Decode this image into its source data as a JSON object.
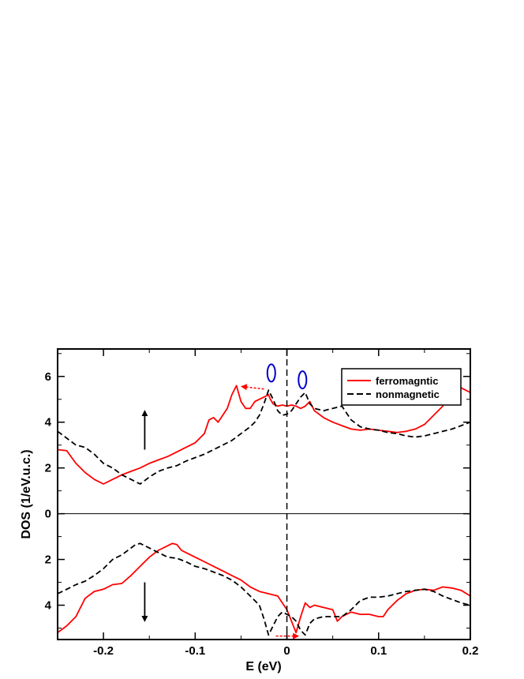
{
  "chart_data": {
    "type": "line",
    "xlabel": "E (eV)",
    "ylabel": "DOS (1/eV.u.c.)",
    "xlim": [
      -0.25,
      0.2
    ],
    "ylim": [
      -5.5,
      7.2
    ],
    "x_ticks": [
      -0.2,
      -0.1,
      0,
      0.1,
      0.2
    ],
    "x_tick_labels": [
      "-0.2",
      "-0.1",
      "0",
      "0.1",
      "0.2"
    ],
    "y_ticks": [
      6,
      4,
      2,
      0,
      -2,
      -4
    ],
    "y_tick_labels": [
      "6",
      "4",
      "2",
      "0",
      "2",
      "4"
    ],
    "legend_position": "top-right",
    "colors": {
      "ferromagnetic": "#ff0000",
      "nonmagnetic": "#000000",
      "markers": "#0000cc"
    },
    "spin_up_label": "↑",
    "spin_down_label": "↓",
    "series": [
      {
        "name": "ferromagntic",
        "style": "solid",
        "color": "#ff0000",
        "up": {
          "x": [
            -0.25,
            -0.24,
            -0.23,
            -0.22,
            -0.21,
            -0.2,
            -0.19,
            -0.18,
            -0.17,
            -0.16,
            -0.15,
            -0.14,
            -0.13,
            -0.12,
            -0.11,
            -0.1,
            -0.09,
            -0.085,
            -0.08,
            -0.075,
            -0.07,
            -0.065,
            -0.06,
            -0.055,
            -0.05,
            -0.045,
            -0.04,
            -0.035,
            -0.03,
            -0.025,
            -0.02,
            -0.018,
            -0.015,
            -0.01,
            -0.005,
            0,
            0.005,
            0.01,
            0.015,
            0.02,
            0.025,
            0.03,
            0.04,
            0.05,
            0.06,
            0.07,
            0.08,
            0.09,
            0.1,
            0.11,
            0.12,
            0.13,
            0.14,
            0.15,
            0.16,
            0.17,
            0.175,
            0.18,
            0.185,
            0.19,
            0.2
          ],
          "y": [
            2.8,
            2.75,
            2.2,
            1.8,
            1.5,
            1.3,
            1.5,
            1.7,
            1.85,
            2.0,
            2.2,
            2.35,
            2.5,
            2.7,
            2.9,
            3.1,
            3.5,
            4.1,
            4.2,
            4.0,
            4.3,
            4.6,
            5.2,
            5.6,
            4.9,
            4.6,
            4.6,
            4.9,
            5.0,
            5.1,
            5.2,
            5.0,
            4.8,
            4.7,
            4.75,
            4.7,
            4.75,
            4.7,
            4.6,
            4.7,
            4.9,
            4.5,
            4.2,
            4.0,
            3.85,
            3.7,
            3.65,
            3.7,
            3.65,
            3.6,
            3.55,
            3.6,
            3.7,
            3.9,
            4.3,
            4.7,
            5.1,
            6.2,
            5.8,
            5.5,
            5.3
          ]
        },
        "down": {
          "x": [
            -0.25,
            -0.24,
            -0.23,
            -0.22,
            -0.21,
            -0.2,
            -0.19,
            -0.18,
            -0.17,
            -0.16,
            -0.15,
            -0.14,
            -0.13,
            -0.125,
            -0.12,
            -0.115,
            -0.11,
            -0.1,
            -0.09,
            -0.08,
            -0.07,
            -0.06,
            -0.05,
            -0.04,
            -0.03,
            -0.02,
            -0.01,
            0,
            0.005,
            0.01,
            0.015,
            0.02,
            0.025,
            0.03,
            0.04,
            0.05,
            0.055,
            0.06,
            0.07,
            0.08,
            0.09,
            0.1,
            0.105,
            0.11,
            0.12,
            0.13,
            0.14,
            0.15,
            0.16,
            0.17,
            0.18,
            0.19,
            0.2
          ],
          "y": [
            -5.2,
            -4.9,
            -4.5,
            -3.7,
            -3.4,
            -3.3,
            -3.1,
            -3.05,
            -2.7,
            -2.3,
            -1.9,
            -1.6,
            -1.4,
            -1.3,
            -1.35,
            -1.6,
            -1.7,
            -1.9,
            -2.1,
            -2.3,
            -2.5,
            -2.7,
            -2.9,
            -3.2,
            -3.4,
            -3.5,
            -3.6,
            -4.2,
            -4.7,
            -5.2,
            -4.5,
            -3.9,
            -4.1,
            -4.0,
            -4.1,
            -4.2,
            -4.7,
            -4.5,
            -4.3,
            -4.4,
            -4.4,
            -4.5,
            -4.5,
            -4.2,
            -3.8,
            -3.5,
            -3.35,
            -3.3,
            -3.35,
            -3.2,
            -3.25,
            -3.35,
            -3.6
          ]
        }
      },
      {
        "name": "nonmagnetic",
        "style": "dashed",
        "color": "#000000",
        "up": {
          "x": [
            -0.25,
            -0.24,
            -0.23,
            -0.22,
            -0.21,
            -0.2,
            -0.19,
            -0.18,
            -0.17,
            -0.16,
            -0.15,
            -0.14,
            -0.13,
            -0.12,
            -0.11,
            -0.1,
            -0.09,
            -0.08,
            -0.07,
            -0.06,
            -0.05,
            -0.04,
            -0.035,
            -0.03,
            -0.025,
            -0.02,
            -0.015,
            -0.01,
            -0.005,
            0,
            0.005,
            0.01,
            0.015,
            0.02,
            0.025,
            0.03,
            0.04,
            0.05,
            0.06,
            0.07,
            0.08,
            0.09,
            0.1,
            0.11,
            0.12,
            0.13,
            0.14,
            0.15,
            0.16,
            0.17,
            0.18,
            0.19,
            0.2
          ],
          "y": [
            3.6,
            3.3,
            3.0,
            2.9,
            2.6,
            2.2,
            2.0,
            1.7,
            1.5,
            1.3,
            1.6,
            1.85,
            2.0,
            2.1,
            2.3,
            2.45,
            2.6,
            2.8,
            3.0,
            3.2,
            3.5,
            3.8,
            4.0,
            4.3,
            4.8,
            5.4,
            5.0,
            4.5,
            4.3,
            4.35,
            4.5,
            4.8,
            5.1,
            5.3,
            4.8,
            4.6,
            4.5,
            4.6,
            4.7,
            4.1,
            3.8,
            3.7,
            3.65,
            3.55,
            3.5,
            3.4,
            3.35,
            3.4,
            3.5,
            3.6,
            3.7,
            3.85,
            4.0
          ]
        },
        "down": {
          "x": [
            -0.25,
            -0.24,
            -0.23,
            -0.22,
            -0.21,
            -0.2,
            -0.19,
            -0.18,
            -0.17,
            -0.165,
            -0.16,
            -0.155,
            -0.15,
            -0.14,
            -0.13,
            -0.12,
            -0.11,
            -0.1,
            -0.09,
            -0.08,
            -0.07,
            -0.06,
            -0.05,
            -0.04,
            -0.03,
            -0.025,
            -0.02,
            -0.015,
            -0.01,
            -0.005,
            0,
            0.005,
            0.01,
            0.015,
            0.02,
            0.025,
            0.03,
            0.04,
            0.05,
            0.06,
            0.07,
            0.08,
            0.09,
            0.1,
            0.11,
            0.12,
            0.13,
            0.14,
            0.15,
            0.16,
            0.17,
            0.18,
            0.19,
            0.2
          ],
          "y": [
            -3.5,
            -3.3,
            -3.1,
            -2.95,
            -2.7,
            -2.4,
            -2.0,
            -1.8,
            -1.5,
            -1.35,
            -1.3,
            -1.4,
            -1.5,
            -1.7,
            -1.9,
            -1.95,
            -2.1,
            -2.3,
            -2.4,
            -2.55,
            -2.7,
            -2.9,
            -3.2,
            -3.6,
            -4.0,
            -4.6,
            -5.3,
            -4.9,
            -4.5,
            -4.3,
            -4.4,
            -4.5,
            -4.7,
            -5.1,
            -5.3,
            -4.8,
            -4.6,
            -4.5,
            -4.5,
            -4.5,
            -4.2,
            -3.8,
            -3.65,
            -3.65,
            -3.6,
            -3.5,
            -3.4,
            -3.35,
            -3.3,
            -3.4,
            -3.6,
            -3.75,
            -3.9,
            -4.0
          ]
        }
      }
    ]
  }
}
